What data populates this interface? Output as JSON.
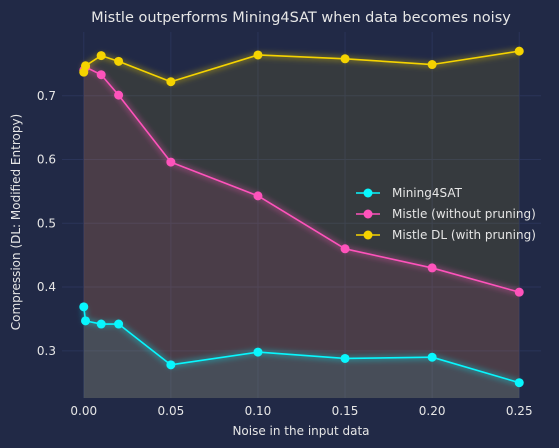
{
  "chart_data": {
    "type": "line",
    "title": "Mistle outperforms Mining4SAT when data becomes noisy",
    "xlabel": "Noise in the input data",
    "ylabel": "Compression (DL: Modified Entropy)",
    "xlim": [
      -0.0125,
      0.2625
    ],
    "ylim": [
      0.226,
      0.8
    ],
    "xticks": [
      0.0,
      0.05,
      0.1,
      0.15,
      0.2,
      0.25
    ],
    "xtick_labels": [
      "0.00",
      "0.05",
      "0.10",
      "0.15",
      "0.20",
      "0.25"
    ],
    "yticks": [
      0.3,
      0.4,
      0.5,
      0.6,
      0.7
    ],
    "ytick_labels": [
      "0.3",
      "0.4",
      "0.5",
      "0.6",
      "0.7"
    ],
    "grid": true,
    "legend_position": "center-right",
    "series": [
      {
        "name": "Mining4SAT",
        "color": "#08f7fe",
        "x": [
          0.0,
          0.001,
          0.01,
          0.02,
          0.05,
          0.1,
          0.15,
          0.2,
          0.25
        ],
        "y": [
          0.369,
          0.347,
          0.342,
          0.342,
          0.278,
          0.298,
          0.288,
          0.29,
          0.25
        ]
      },
      {
        "name": "Mistle (without pruning)",
        "color": "#fe53bb",
        "x": [
          0.0,
          0.001,
          0.01,
          0.02,
          0.05,
          0.1,
          0.15,
          0.2,
          0.25
        ],
        "y": [
          0.74,
          0.745,
          0.733,
          0.701,
          0.596,
          0.543,
          0.46,
          0.43,
          0.392
        ]
      },
      {
        "name": "Mistle DL (with pruning)",
        "color": "#f5d300",
        "x": [
          0.0,
          0.001,
          0.01,
          0.02,
          0.05,
          0.1,
          0.15,
          0.2,
          0.25
        ],
        "y": [
          0.737,
          0.747,
          0.763,
          0.754,
          0.722,
          0.764,
          0.758,
          0.749,
          0.77
        ]
      }
    ]
  }
}
